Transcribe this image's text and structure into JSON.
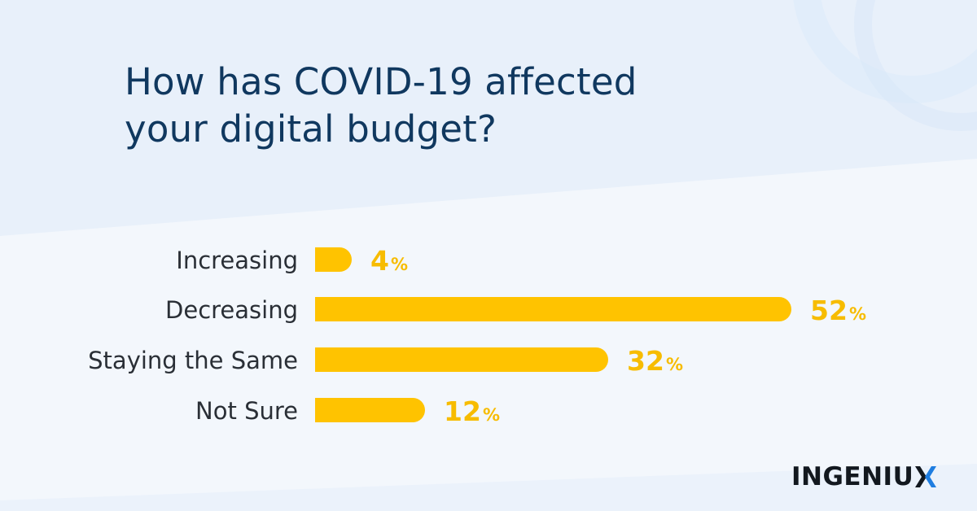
{
  "title": {
    "line1": "How has COVID-19 affected",
    "line2": "your digital budget?"
  },
  "brand": {
    "logo_text": "INGENIU",
    "logo_mark": "X",
    "logo_mark_colors": [
      "#12181f",
      "#1e7de0"
    ]
  },
  "colors": {
    "background": "#f3f7fc",
    "band": "#e8f0fa",
    "bar": "#ffc300",
    "value": "#f7bc00",
    "title": "#10385f",
    "label": "#2a2f36"
  },
  "chart_data": {
    "type": "bar",
    "orientation": "horizontal",
    "categories": [
      "Increasing",
      "Decreasing",
      "Staying the Same",
      "Not Sure"
    ],
    "values": [
      4,
      52,
      32,
      12
    ],
    "value_suffix": "%",
    "xlim": [
      0,
      100
    ],
    "grid": false,
    "legend": "none",
    "xlabel": "",
    "ylabel": ""
  }
}
